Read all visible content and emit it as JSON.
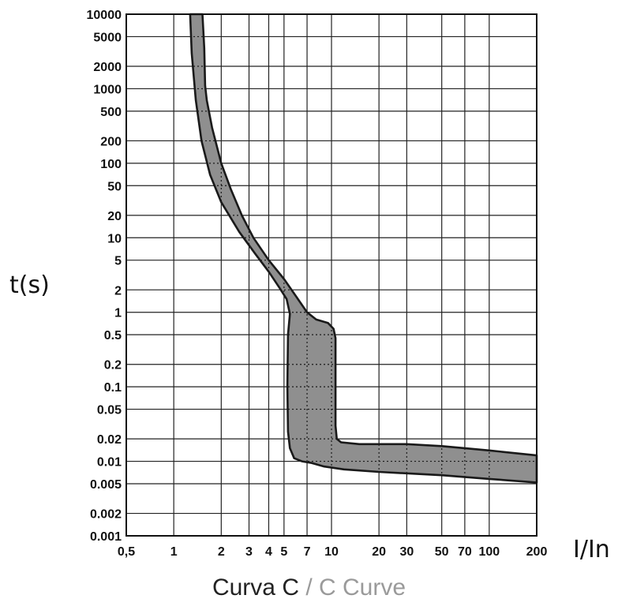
{
  "chart_data": {
    "type": "area",
    "title": "",
    "xlabel": "I/In",
    "ylabel": "t(s)",
    "x_scale": "log",
    "y_scale": "log",
    "xlim": [
      0.5,
      200
    ],
    "ylim": [
      0.001,
      10000
    ],
    "grid": true,
    "x_ticks": [
      {
        "value": 0.5,
        "label": "0,5"
      },
      {
        "value": 1,
        "label": "1"
      },
      {
        "value": 2,
        "label": "2"
      },
      {
        "value": 3,
        "label": "3"
      },
      {
        "value": 4,
        "label": "4"
      },
      {
        "value": 5,
        "label": "5"
      },
      {
        "value": 7,
        "label": "7"
      },
      {
        "value": 10,
        "label": "10"
      },
      {
        "value": 20,
        "label": "20"
      },
      {
        "value": 30,
        "label": "30"
      },
      {
        "value": 50,
        "label": "50"
      },
      {
        "value": 70,
        "label": "70"
      },
      {
        "value": 100,
        "label": "100"
      },
      {
        "value": 200,
        "label": "200"
      }
    ],
    "y_ticks": [
      {
        "value": 10000,
        "label": "10000"
      },
      {
        "value": 5000,
        "label": "5000"
      },
      {
        "value": 2000,
        "label": "2000"
      },
      {
        "value": 1000,
        "label": "1000"
      },
      {
        "value": 500,
        "label": "500"
      },
      {
        "value": 200,
        "label": "200"
      },
      {
        "value": 100,
        "label": "100"
      },
      {
        "value": 50,
        "label": "50"
      },
      {
        "value": 20,
        "label": "20"
      },
      {
        "value": 10,
        "label": "10"
      },
      {
        "value": 5,
        "label": "5"
      },
      {
        "value": 2,
        "label": "2"
      },
      {
        "value": 1,
        "label": "1"
      },
      {
        "value": 0.5,
        "label": "0.5"
      },
      {
        "value": 0.2,
        "label": "0.2"
      },
      {
        "value": 0.1,
        "label": "0.1"
      },
      {
        "value": 0.05,
        "label": "0.05"
      },
      {
        "value": 0.02,
        "label": "0.02"
      },
      {
        "value": 0.01,
        "label": "0.01"
      },
      {
        "value": 0.005,
        "label": "0.005"
      },
      {
        "value": 0.002,
        "label": "0.002"
      },
      {
        "value": 0.001,
        "label": "0.001"
      }
    ],
    "band": {
      "fill_color": "#8f8f8f",
      "stroke_color": "#1a1a1a",
      "upper_boundary": [
        [
          1.52,
          10000
        ],
        [
          1.56,
          3500
        ],
        [
          1.58,
          1100
        ],
        [
          1.62,
          700
        ],
        [
          1.75,
          300
        ],
        [
          2.0,
          100
        ],
        [
          2.3,
          45
        ],
        [
          2.7,
          20
        ],
        [
          3.2,
          10
        ],
        [
          4.0,
          5
        ],
        [
          5.0,
          2.8
        ],
        [
          6.0,
          1.6
        ],
        [
          7.0,
          1.0
        ],
        [
          8.0,
          0.8
        ],
        [
          9.5,
          0.72
        ],
        [
          10.3,
          0.6
        ],
        [
          10.6,
          0.45
        ],
        [
          10.6,
          0.03
        ],
        [
          10.8,
          0.02
        ],
        [
          11.5,
          0.018
        ],
        [
          15,
          0.017
        ],
        [
          30,
          0.017
        ],
        [
          50,
          0.016
        ],
        [
          100,
          0.014
        ],
        [
          200,
          0.012
        ]
      ],
      "lower_boundary": [
        [
          200,
          0.0052
        ],
        [
          100,
          0.0058
        ],
        [
          50,
          0.0065
        ],
        [
          20,
          0.0072
        ],
        [
          12,
          0.0078
        ],
        [
          9,
          0.0085
        ],
        [
          7.5,
          0.0095
        ],
        [
          6.5,
          0.01
        ],
        [
          5.8,
          0.011
        ],
        [
          5.45,
          0.015
        ],
        [
          5.3,
          0.025
        ],
        [
          5.25,
          0.1
        ],
        [
          5.3,
          0.5
        ],
        [
          5.45,
          0.95
        ],
        [
          5.2,
          1.5
        ],
        [
          4.7,
          2.1
        ],
        [
          4.0,
          3.5
        ],
        [
          3.3,
          6
        ],
        [
          2.6,
          12
        ],
        [
          2.0,
          30
        ],
        [
          1.7,
          70
        ],
        [
          1.5,
          200
        ],
        [
          1.38,
          700
        ],
        [
          1.3,
          3000
        ],
        [
          1.27,
          10000
        ]
      ]
    }
  },
  "caption": {
    "main": "Curva C",
    "separator": "/",
    "sub": "C Curve"
  }
}
